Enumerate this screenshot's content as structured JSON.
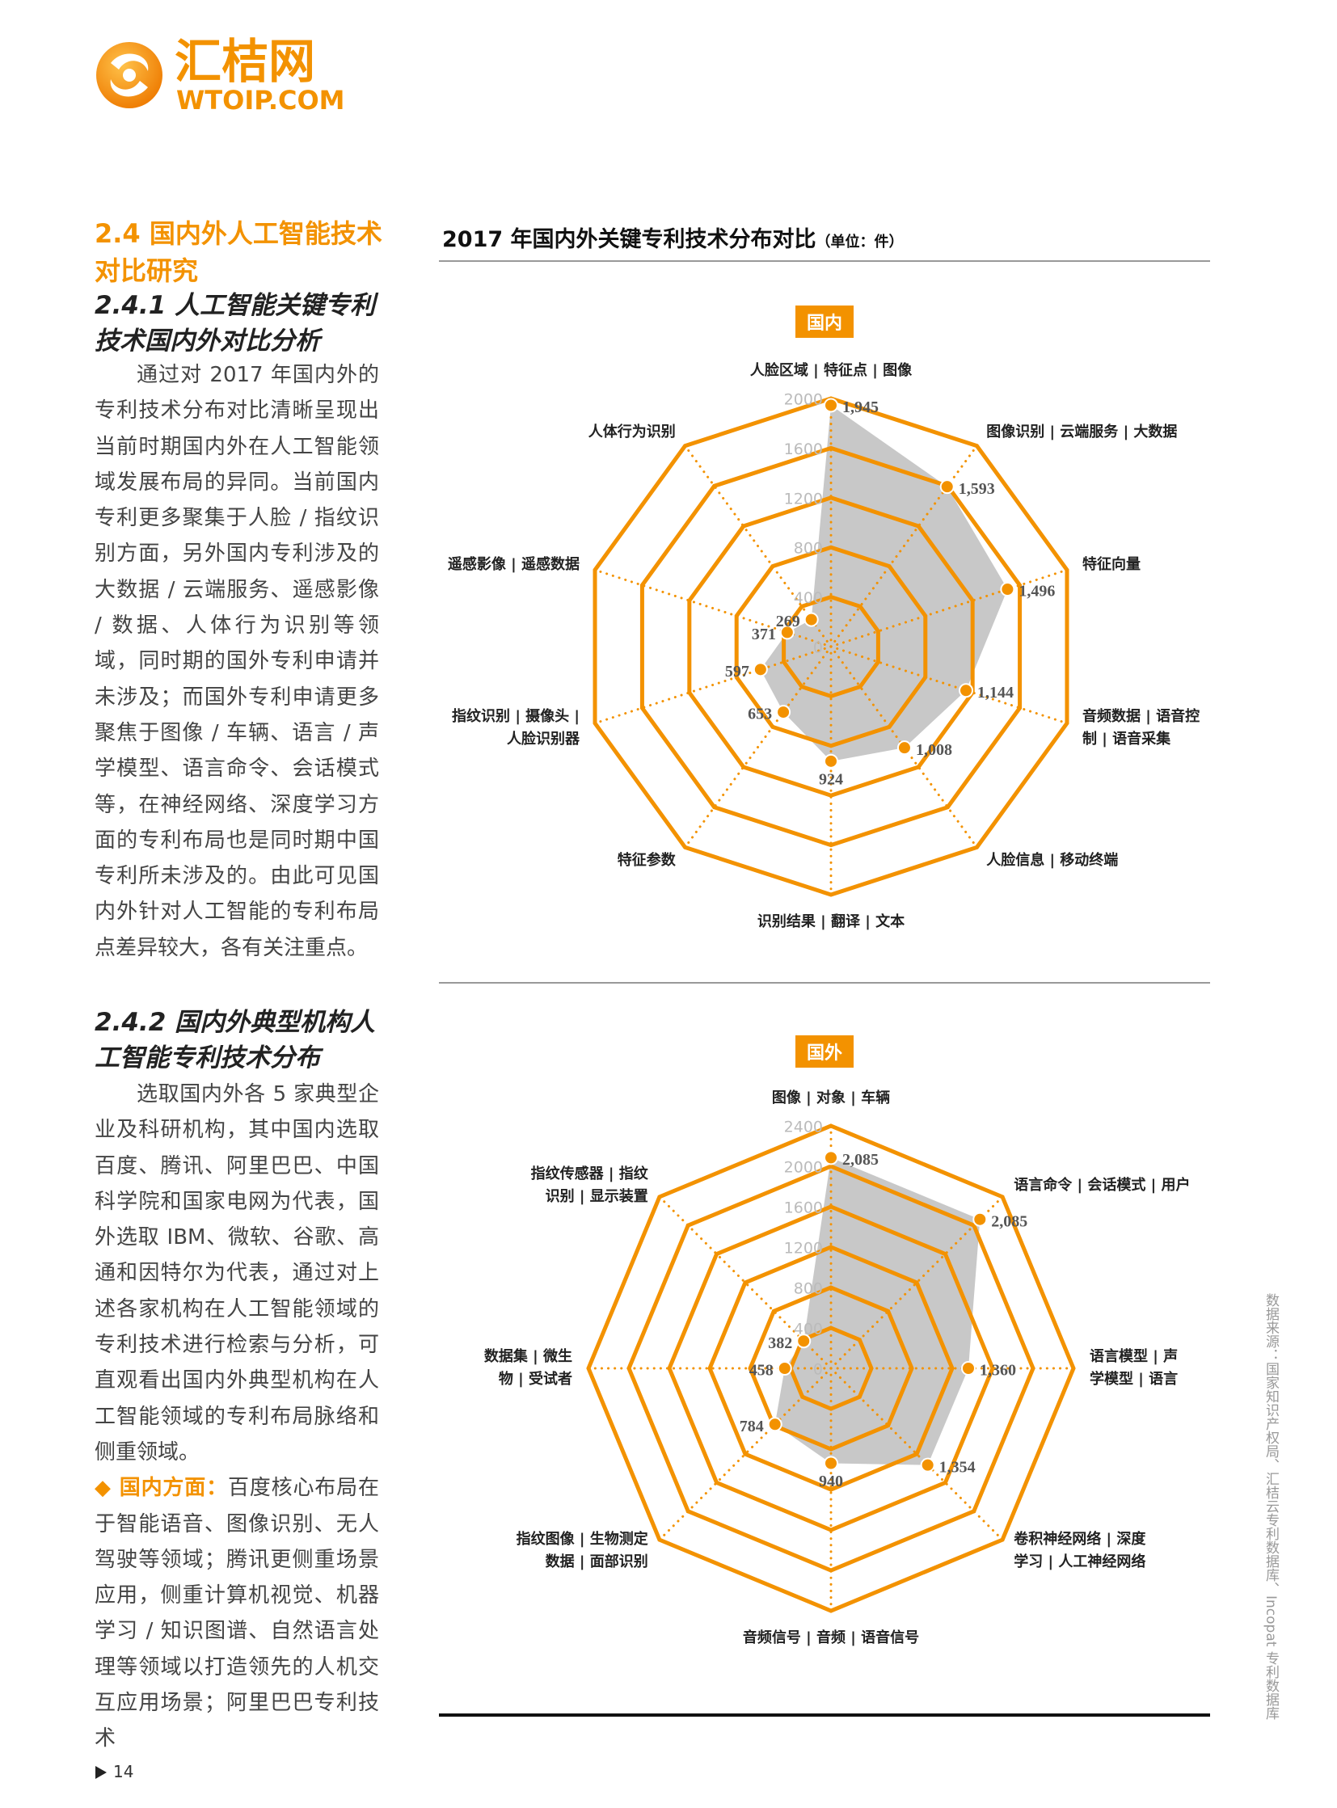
{
  "logo": {
    "name": "汇桔网",
    "domain": "WTOIP.COM"
  },
  "heading": "2.4 国内外人工智能技术对比研究",
  "subsections": [
    {
      "heading": "2.4.1 人工智能关键专利技术国内外对比分析",
      "paragraph": "通过对 2017 年国内外的专利技术分布对比清晰呈现出当前时期国内外在人工智能领域发展布局的异同。当前国内专利更多聚集于人脸 / 指纹识别方面，另外国内专利涉及的大数据 / 云端服务、遥感影像 / 数据、人体行为识别等领域，同时期的国外专利申请并未涉及；而国外专利申请更多聚焦于图像 / 车辆、语言 / 声学模型、语言命令、会话模式等，在神经网络、深度学习方面的专利布局也是同时期中国专利所未涉及的。由此可见国内外针对人工智能的专利布局点差异较大，各有关注重点。"
    },
    {
      "heading": "2.4.2 国内外典型机构人工智能专利技术分布",
      "paragraph": "选取国内外各 5 家典型企业及科研机构，其中国内选取百度、腾讯、阿里巴巴、中国科学院和国家电网为代表，国外选取 IBM、微软、谷歌、高通和因特尔为代表，通过对上述各家机构在人工智能领域的专利技术进行检索与分析，可直观看出国内外典型机构在人工智能领域的专利布局脉络和侧重领域。",
      "bullet": {
        "label": "◆ 国内方面：",
        "text": "百度核心布局在于智能语音、图像识别、无人驾驶等领域；腾讯更侧重场景应用，侧重计算机视觉、机器学习 / 知识图谱、自然语言处理等领域以打造领先的人机交互应用场景；阿里巴巴专利技术"
      }
    }
  ],
  "figure": {
    "title": "2017 年国内外关键专利技术分布对比",
    "unit": "（单位：件）",
    "source": "数据来源：国家知识产权局、汇桔云专利数据库、Incopat 专利数据库"
  },
  "chart_data": [
    {
      "type": "radar",
      "title": "国内",
      "categories": [
        "人脸区域 | 特征点 | 图像",
        "图像识别 | 云端服务 | 大数据",
        "特征向量",
        "音频数据 | 语音控制 | 语音采集",
        "人脸信息 | 移动终端",
        "识别结果 | 翻译 | 文本",
        "特征参数",
        "指纹识别 | 摄像头 | 人脸识别器",
        "遥感影像 | 遥感数据",
        "人体行为识别"
      ],
      "values": [
        1945,
        1593,
        1496,
        1144,
        1008,
        924,
        653,
        597,
        371,
        269
      ],
      "value_labels": [
        "1,945",
        "1,593",
        "1,496",
        "1,144",
        "1,008",
        "924",
        "653",
        "597",
        "371",
        "269"
      ],
      "ylim": [
        0,
        2000
      ],
      "yticks": [
        0,
        400,
        800,
        1200,
        1600,
        2000
      ],
      "color": "#f39200",
      "fill_color": "#c8c8c8",
      "grid": true
    },
    {
      "type": "radar",
      "title": "国外",
      "categories": [
        "图像 | 对象 | 车辆",
        "语言命令 | 会话模式 | 用户",
        "语言模型 | 声学模型 | 语言",
        "卷积神经网络 | 深度学习 | 人工神经网络",
        "音频信号 | 音频 | 语音信号",
        "指纹图像 | 生物测定数据 | 面部识别",
        "数据集 | 微生物 | 受试者",
        "指纹传感器 | 指纹识别 | 显示装置"
      ],
      "values": [
        2085,
        2085,
        1360,
        1354,
        940,
        784,
        458,
        382
      ],
      "value_labels": [
        "2,085",
        "2,085",
        "1,360",
        "1,354",
        "940",
        "784",
        "458",
        "382"
      ],
      "ylim": [
        0,
        2400
      ],
      "yticks": [
        0,
        400,
        800,
        1200,
        1600,
        2000,
        2400
      ],
      "color": "#f39200",
      "fill_color": "#c8c8c8",
      "grid": true
    }
  ],
  "page_number": "14"
}
